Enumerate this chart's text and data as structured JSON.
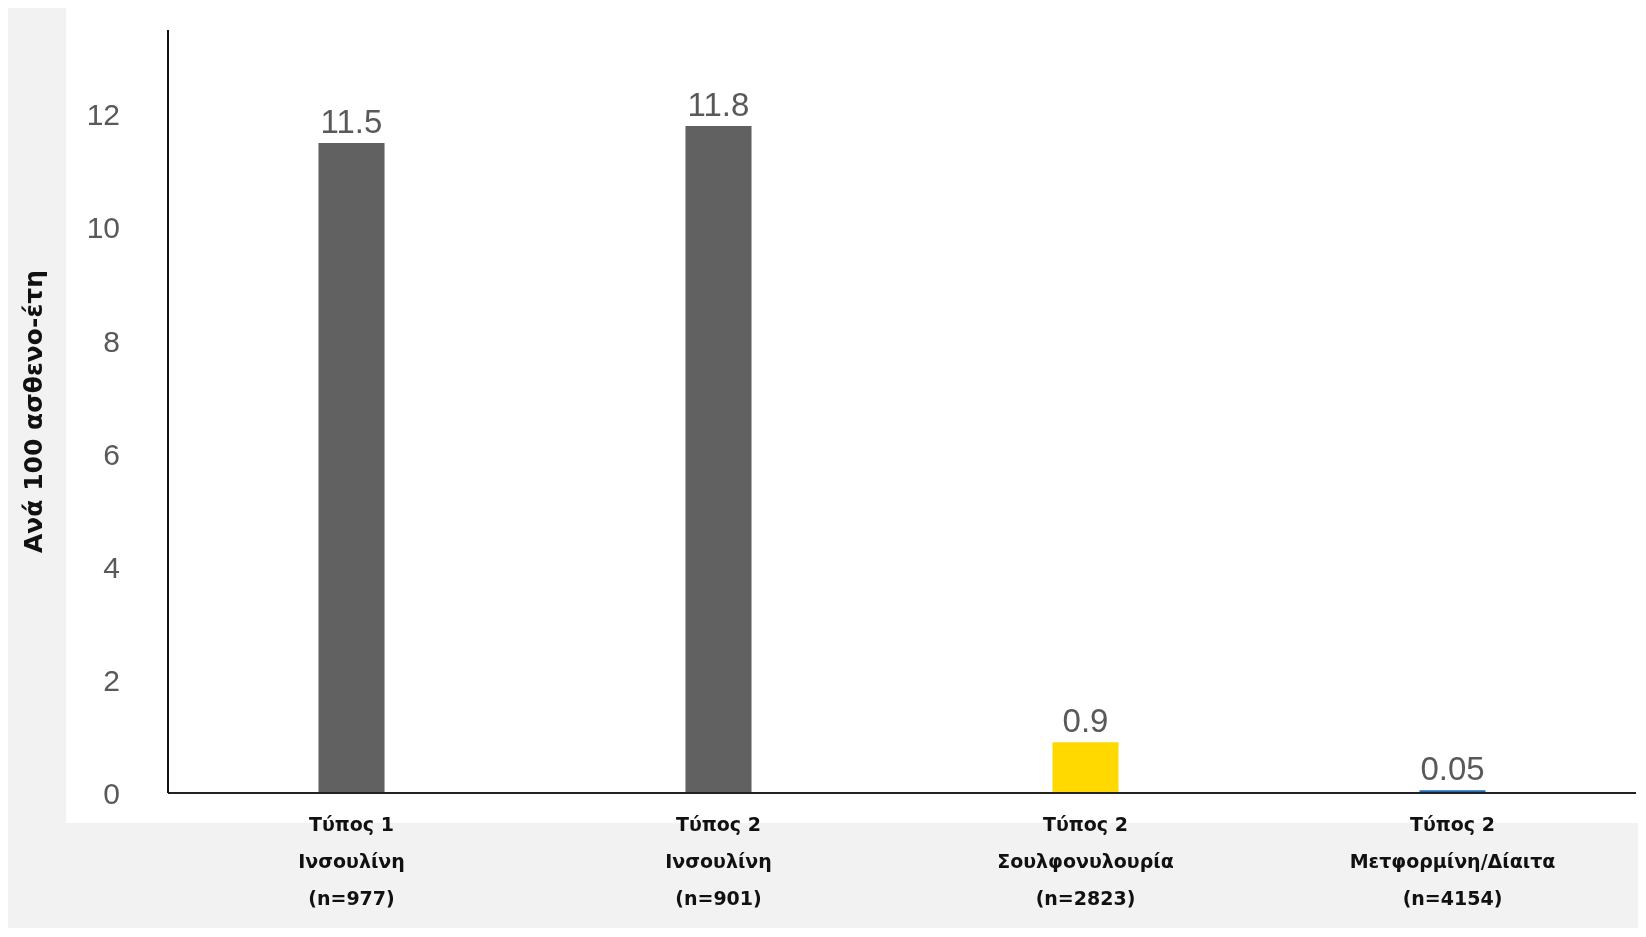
{
  "chart_data": {
    "type": "bar",
    "ylabel": "Ανά 100 ασθενο-έτη",
    "categories": [
      "Τύπος 1\nΙνσουλίνη\n(n=977)",
      "Τύπος 2\nΙνσουλίνη\n(n=901)",
      "Τύπος 2\nΣουλφονυλουρία\n(n=2823)",
      "Τύπος 2\nΜετφορμίνη/Δίαιτα\n(n=4154)"
    ],
    "values": [
      11.5,
      11.8,
      0.9,
      0.05
    ],
    "colors": [
      "#616161",
      "#616161",
      "#ffd900",
      "#1a6fc0"
    ],
    "ylim": [
      0,
      13.5
    ],
    "yticks": [
      0,
      2,
      4,
      6,
      8,
      10,
      12
    ],
    "grid": false,
    "data_labels": true
  }
}
